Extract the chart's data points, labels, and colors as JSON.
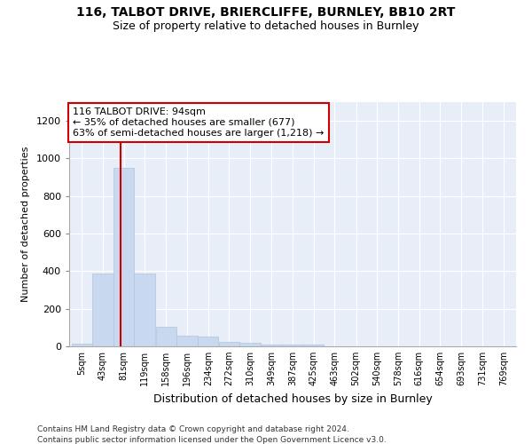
{
  "title1": "116, TALBOT DRIVE, BRIERCLIFFE, BURNLEY, BB10 2RT",
  "title2": "Size of property relative to detached houses in Burnley",
  "xlabel": "Distribution of detached houses by size in Burnley",
  "ylabel": "Number of detached properties",
  "bin_labels": [
    "5sqm",
    "43sqm",
    "81sqm",
    "119sqm",
    "158sqm",
    "196sqm",
    "234sqm",
    "272sqm",
    "310sqm",
    "349sqm",
    "387sqm",
    "425sqm",
    "463sqm",
    "502sqm",
    "540sqm",
    "578sqm",
    "616sqm",
    "654sqm",
    "693sqm",
    "731sqm",
    "769sqm"
  ],
  "bin_lefts": [
    5,
    43,
    81,
    119,
    158,
    196,
    234,
    272,
    310,
    349,
    387,
    425,
    463,
    502,
    540,
    578,
    616,
    654,
    693,
    731,
    769
  ],
  "bin_width": 38,
  "bar_heights": [
    15,
    390,
    950,
    390,
    105,
    55,
    50,
    25,
    20,
    10,
    10,
    10,
    0,
    0,
    0,
    0,
    0,
    0,
    0,
    0,
    0
  ],
  "bar_color": "#c8d9ef",
  "bar_edgecolor": "#aec4e0",
  "bg_color": "#e8eef8",
  "grid_color": "#ffffff",
  "property_value": 94,
  "red_line_color": "#cc0000",
  "annotation_text": "116 TALBOT DRIVE: 94sqm\n← 35% of detached houses are smaller (677)\n63% of semi-detached houses are larger (1,218) →",
  "annotation_box_color": "#cc0000",
  "ylim": [
    0,
    1300
  ],
  "yticks": [
    0,
    200,
    400,
    600,
    800,
    1000,
    1200
  ],
  "footer1": "Contains HM Land Registry data © Crown copyright and database right 2024.",
  "footer2": "Contains public sector information licensed under the Open Government Licence v3.0."
}
